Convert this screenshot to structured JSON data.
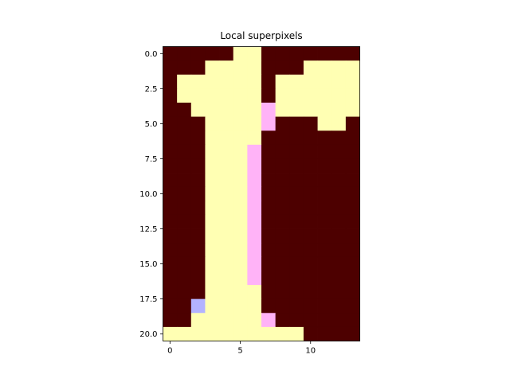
{
  "chart_data": {
    "type": "heatmap",
    "title": "Local superpixels",
    "xlabel": "",
    "ylabel": "",
    "grid": false,
    "columns": 14,
    "rows": 21,
    "xlim": [
      -0.5,
      13.5
    ],
    "ylim": [
      20.5,
      -0.5
    ],
    "x_ticks": [
      {
        "value": 0,
        "label": "0"
      },
      {
        "value": 5,
        "label": "5"
      },
      {
        "value": 10,
        "label": "10"
      }
    ],
    "y_ticks": [
      {
        "value": 0.0,
        "label": "0.0"
      },
      {
        "value": 2.5,
        "label": "2.5"
      },
      {
        "value": 5.0,
        "label": "5.0"
      },
      {
        "value": 7.5,
        "label": "7.5"
      },
      {
        "value": 10.0,
        "label": "10.0"
      },
      {
        "value": 12.5,
        "label": "12.5"
      },
      {
        "value": 15.0,
        "label": "15.0"
      },
      {
        "value": 17.5,
        "label": "17.5"
      },
      {
        "value": 20.0,
        "label": "20.0"
      }
    ],
    "palette": {
      "0": "#4d0000",
      "1": "#ffffb3",
      "2": "#ffb3f7",
      "3": "#b3b3ff"
    },
    "grid_values": [
      [
        0,
        0,
        0,
        0,
        0,
        1,
        1,
        0,
        0,
        0,
        0,
        0,
        0,
        0
      ],
      [
        0,
        0,
        0,
        1,
        1,
        1,
        1,
        0,
        0,
        0,
        1,
        1,
        1,
        1
      ],
      [
        0,
        1,
        1,
        1,
        1,
        1,
        1,
        0,
        1,
        1,
        1,
        1,
        1,
        1
      ],
      [
        0,
        1,
        1,
        1,
        1,
        1,
        1,
        0,
        1,
        1,
        1,
        1,
        1,
        1
      ],
      [
        0,
        0,
        1,
        1,
        1,
        1,
        1,
        2,
        1,
        1,
        1,
        1,
        1,
        1
      ],
      [
        0,
        0,
        0,
        1,
        1,
        1,
        1,
        2,
        0,
        0,
        0,
        1,
        1,
        0
      ],
      [
        0,
        0,
        0,
        1,
        1,
        1,
        1,
        0,
        0,
        0,
        0,
        0,
        0,
        0
      ],
      [
        0,
        0,
        0,
        1,
        1,
        1,
        2,
        0,
        0,
        0,
        0,
        0,
        0,
        0
      ],
      [
        0,
        0,
        0,
        1,
        1,
        1,
        2,
        0,
        0,
        0,
        0,
        0,
        0,
        0
      ],
      [
        0,
        0,
        0,
        1,
        1,
        1,
        2,
        0,
        0,
        0,
        0,
        0,
        0,
        0
      ],
      [
        0,
        0,
        0,
        1,
        1,
        1,
        2,
        0,
        0,
        0,
        0,
        0,
        0,
        0
      ],
      [
        0,
        0,
        0,
        1,
        1,
        1,
        2,
        0,
        0,
        0,
        0,
        0,
        0,
        0
      ],
      [
        0,
        0,
        0,
        1,
        1,
        1,
        2,
        0,
        0,
        0,
        0,
        0,
        0,
        0
      ],
      [
        0,
        0,
        0,
        1,
        1,
        1,
        2,
        0,
        0,
        0,
        0,
        0,
        0,
        0
      ],
      [
        0,
        0,
        0,
        1,
        1,
        1,
        2,
        0,
        0,
        0,
        0,
        0,
        0,
        0
      ],
      [
        0,
        0,
        0,
        1,
        1,
        1,
        2,
        0,
        0,
        0,
        0,
        0,
        0,
        0
      ],
      [
        0,
        0,
        0,
        1,
        1,
        1,
        2,
        0,
        0,
        0,
        0,
        0,
        0,
        0
      ],
      [
        0,
        0,
        0,
        1,
        1,
        1,
        1,
        0,
        0,
        0,
        0,
        0,
        0,
        0
      ],
      [
        0,
        0,
        3,
        1,
        1,
        1,
        1,
        0,
        0,
        0,
        0,
        0,
        0,
        0
      ],
      [
        0,
        0,
        1,
        1,
        1,
        1,
        1,
        2,
        0,
        0,
        0,
        0,
        0,
        0
      ],
      [
        1,
        1,
        1,
        1,
        1,
        1,
        1,
        1,
        1,
        1,
        0,
        0,
        0,
        0
      ]
    ]
  }
}
